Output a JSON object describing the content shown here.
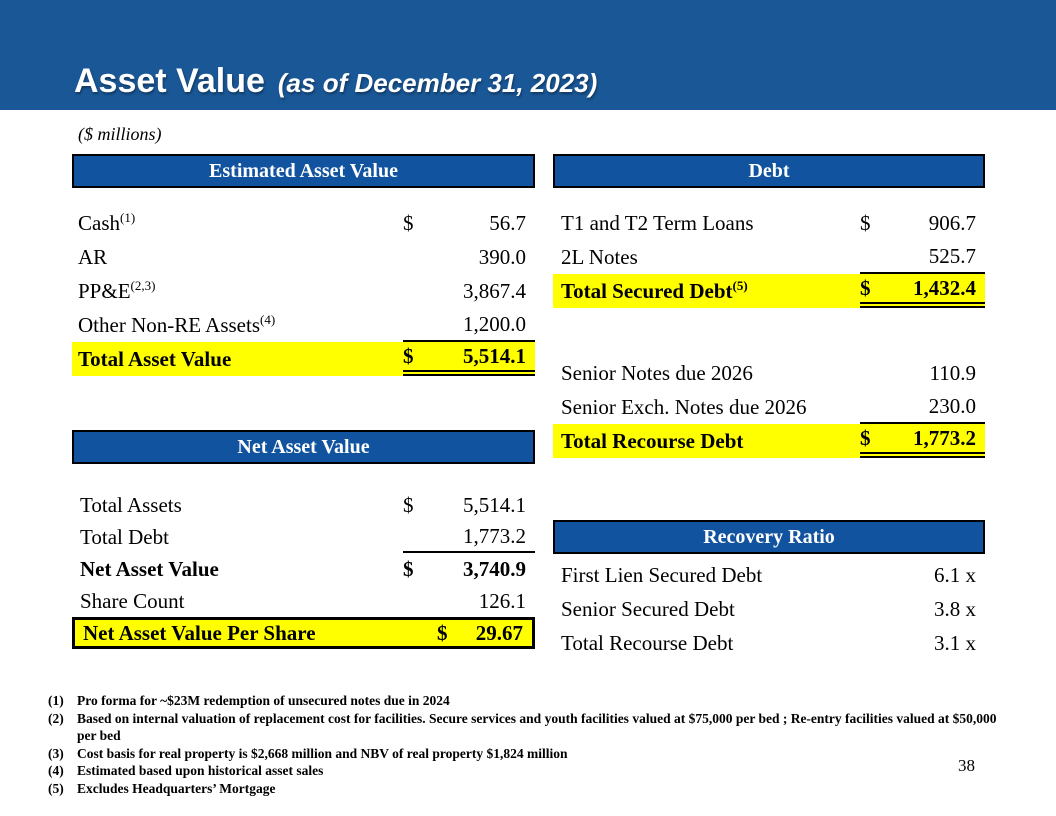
{
  "slide": {
    "title": "Asset Value",
    "subtitle": "(as of December 31, 2023)",
    "units_note": "($ millions)",
    "page_number": "38"
  },
  "colors": {
    "band_blue": "#1A5796",
    "header_bar_blue": "#11539F",
    "highlight_yellow": "#FFFF00",
    "header_text": "#FFFFFF"
  },
  "tables": {
    "estimated_asset_value": {
      "header": "Estimated Asset Value",
      "rows": [
        {
          "label": "Cash",
          "sup": "(1)",
          "dollar": "$",
          "value": "56.7"
        },
        {
          "label": "AR",
          "value": "390.0"
        },
        {
          "label": "PP&E",
          "sup": "(2,3)",
          "value": "3,867.4"
        },
        {
          "label": "Other Non-RE Assets",
          "sup": "(4)",
          "value": "1,200.0",
          "rule": "single"
        },
        {
          "label": "Total Asset Value",
          "dollar": "$",
          "value": "5,514.1",
          "style": "total",
          "rule": "double"
        }
      ]
    },
    "debt": {
      "header": "Debt",
      "rows_secured": [
        {
          "label": "T1 and T2 Term Loans",
          "dollar": "$",
          "value": "906.7"
        },
        {
          "label": "2L Notes",
          "value": "525.7",
          "rule": "single"
        },
        {
          "label": "Total Secured Debt",
          "sup": "(5)",
          "dollar": "$",
          "value": "1,432.4",
          "style": "total",
          "rule": "double"
        }
      ],
      "rows_recourse": [
        {
          "label": "Senior Notes due 2026",
          "value": "110.9"
        },
        {
          "label": "Senior Exch. Notes due 2026",
          "value": "230.0",
          "rule": "single"
        },
        {
          "label": "Total Recourse Debt",
          "dollar": "$",
          "value": "1,773.2",
          "style": "total",
          "rule": "double"
        }
      ]
    },
    "net_asset_value": {
      "header": "Net Asset Value",
      "rows": [
        {
          "label": "Total Assets",
          "dollar": "$",
          "value": "5,514.1"
        },
        {
          "label": "Total Debt",
          "value": "1,773.2",
          "rule": "single"
        },
        {
          "label": "Net Asset Value",
          "dollar": "$",
          "value": "3,740.9",
          "style": "bold"
        },
        {
          "label": "Share Count",
          "value": "126.1"
        },
        {
          "label": "Net Asset Value Per Share",
          "dollar": "$",
          "value": "29.67",
          "style": "boxed"
        }
      ]
    },
    "recovery_ratio": {
      "header": "Recovery Ratio",
      "rows": [
        {
          "label": "First Lien Secured Debt",
          "value": "6.1 x"
        },
        {
          "label": "Senior Secured Debt",
          "value": "3.8 x"
        },
        {
          "label": "Total Recourse Debt",
          "value": "3.1 x"
        }
      ]
    }
  },
  "footnotes": [
    {
      "num": "(1)",
      "text": "Pro forma for ~$23M redemption of unsecured notes due in 2024"
    },
    {
      "num": "(2)",
      "text": "Based on internal valuation of replacement cost for facilities. Secure services and youth facilities valued at $75,000 per bed ; Re-entry facilities valued at $50,000 per bed"
    },
    {
      "num": "(3)",
      "text": "Cost basis for real property is $2,668 million and NBV of real property $1,824 million"
    },
    {
      "num": "(4)",
      "text": "Estimated based upon historical asset sales"
    },
    {
      "num": "(5)",
      "text": "Excludes Headquarters’ Mortgage"
    }
  ]
}
